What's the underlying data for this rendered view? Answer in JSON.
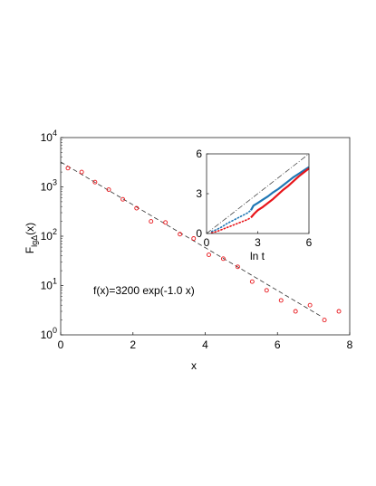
{
  "chart_data": [
    {
      "type": "scatter",
      "xlabel": "x",
      "ylabel_main": "F",
      "ylabel_sub": "lgΔ",
      "ylabel_arg": "(x)",
      "xlim": [
        0,
        8
      ],
      "ylim": [
        1,
        10000
      ],
      "yscale": "log",
      "x_ticks": [
        "0",
        "2",
        "4",
        "6",
        "8"
      ],
      "y_ticks": [
        {
          "value": 1,
          "base": "10",
          "exp": "0"
        },
        {
          "value": 10,
          "base": "10",
          "exp": "1"
        },
        {
          "value": 100,
          "base": "10",
          "exp": "2"
        },
        {
          "value": 1000,
          "base": "10",
          "exp": "3"
        },
        {
          "value": 10000,
          "base": "10",
          "exp": "4"
        }
      ],
      "annotation": "f(x)=3200 exp(-1.0 x)",
      "fit": {
        "A": 3200,
        "k": -1.0,
        "x_range": [
          0,
          7.25
        ]
      },
      "series": [
        {
          "color": "#e8161b",
          "marker": "circle",
          "x": [
            0.2,
            0.58,
            0.95,
            1.33,
            1.72,
            2.1,
            2.5,
            2.9,
            3.3,
            3.68,
            4.1,
            4.5,
            4.9,
            5.3,
            5.7,
            6.1,
            6.5,
            6.9,
            7.3,
            7.7
          ],
          "y": [
            2400,
            2000,
            1250,
            880,
            560,
            370,
            200,
            190,
            110,
            90,
            42,
            35,
            24,
            12,
            8,
            5,
            3,
            4,
            2,
            3
          ]
        }
      ],
      "grid": false
    },
    {
      "type": "line",
      "xlabel": "ln t",
      "xlim": [
        0,
        6
      ],
      "ylim": [
        0,
        6
      ],
      "x_ticks": [
        "0",
        "3",
        "6"
      ],
      "y_ticks": [
        "0",
        "3",
        "6"
      ],
      "reference_line": {
        "x": [
          0,
          6
        ],
        "y": [
          0,
          6
        ],
        "style": "dash-dot"
      },
      "series": [
        {
          "color": "#1f77b4",
          "x": [
            0.3,
            0.6,
            0.9,
            1.2,
            1.5,
            1.8,
            2.1,
            2.4,
            2.6,
            2.75,
            3.0,
            3.3,
            3.6,
            3.9,
            4.2,
            4.5,
            4.8,
            5.1,
            5.4,
            5.7,
            6.0
          ],
          "y": [
            0.15,
            0.3,
            0.5,
            0.75,
            0.95,
            1.15,
            1.35,
            1.55,
            1.75,
            2.1,
            2.3,
            2.55,
            2.8,
            3.1,
            3.35,
            3.65,
            3.95,
            4.25,
            4.5,
            4.75,
            5.0
          ]
        },
        {
          "color": "#e8161b",
          "x": [
            0.3,
            0.6,
            0.9,
            1.2,
            1.5,
            1.8,
            2.1,
            2.4,
            2.6,
            2.8,
            3.0,
            3.3,
            3.6,
            3.9,
            4.2,
            4.5,
            4.8,
            5.1,
            5.4,
            5.7,
            6.0
          ],
          "y": [
            0.05,
            0.15,
            0.3,
            0.45,
            0.6,
            0.75,
            0.9,
            1.05,
            1.2,
            1.5,
            1.75,
            2.0,
            2.3,
            2.6,
            2.95,
            3.3,
            3.6,
            3.95,
            4.3,
            4.6,
            4.9
          ]
        }
      ],
      "grid": false
    }
  ]
}
